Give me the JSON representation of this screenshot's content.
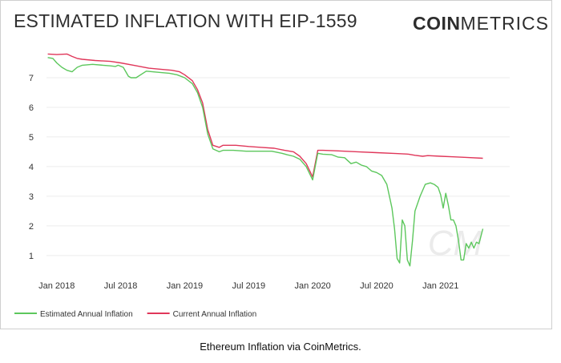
{
  "header": {
    "title": "ESTIMATED INFLATION WITH EIP-1559",
    "logo_bold": "COIN",
    "logo_light": "METRICS",
    "watermark": "CM"
  },
  "caption": "Ethereum Inflation via CoinMetrics.",
  "colors": {
    "estimated": "#5cc75c",
    "current": "#e0375a",
    "grid": "#ececec"
  },
  "chart_data": {
    "type": "line",
    "title": "ESTIMATED INFLATION WITH EIP-1559",
    "xlabel": "",
    "ylabel": "",
    "xlim": [
      2017.92,
      2021.54
    ],
    "ylim": [
      0.4,
      8.0
    ],
    "y_ticks": [
      1,
      2,
      3,
      4,
      5,
      6,
      7
    ],
    "x_ticks": [
      {
        "label": "Jan 2018",
        "value": 2018.0
      },
      {
        "label": "Jul 2018",
        "value": 2018.5
      },
      {
        "label": "Jan 2019",
        "value": 2019.0
      },
      {
        "label": "Jul 2019",
        "value": 2019.5
      },
      {
        "label": "Jan 2020",
        "value": 2020.0
      },
      {
        "label": "Jul 2020",
        "value": 2020.5
      },
      {
        "label": "Jan 2021",
        "value": 2021.0
      }
    ],
    "grid": true,
    "legend_position": "bottom-left",
    "series": [
      {
        "name": "Estimated Annual Inflation",
        "color": "#5cc75c",
        "x": [
          2017.93,
          2017.97,
          2018.0,
          2018.04,
          2018.08,
          2018.12,
          2018.16,
          2018.2,
          2018.28,
          2018.36,
          2018.42,
          2018.46,
          2018.48,
          2018.52,
          2018.56,
          2018.58,
          2018.62,
          2018.7,
          2018.8,
          2018.88,
          2018.94,
          2019.0,
          2019.06,
          2019.1,
          2019.14,
          2019.18,
          2019.22,
          2019.27,
          2019.3,
          2019.38,
          2019.48,
          2019.58,
          2019.68,
          2019.76,
          2019.8,
          2019.85,
          2019.9,
          2019.95,
          2020.0,
          2020.04,
          2020.08,
          2020.15,
          2020.2,
          2020.25,
          2020.3,
          2020.34,
          2020.38,
          2020.42,
          2020.46,
          2020.5,
          2020.54,
          2020.58,
          2020.6,
          2020.62,
          2020.64,
          2020.66,
          2020.68,
          2020.7,
          2020.72,
          2020.74,
          2020.76,
          2020.78,
          2020.8,
          2020.84,
          2020.88,
          2020.92,
          2020.95,
          2020.98,
          2021.0,
          2021.02,
          2021.04,
          2021.06,
          2021.08,
          2021.1,
          2021.12,
          2021.14,
          2021.16,
          2021.18,
          2021.2,
          2021.22,
          2021.24,
          2021.26,
          2021.28,
          2021.3,
          2021.33
        ],
        "values": [
          7.68,
          7.65,
          7.5,
          7.35,
          7.25,
          7.2,
          7.35,
          7.42,
          7.45,
          7.42,
          7.4,
          7.38,
          7.42,
          7.35,
          7.05,
          7.0,
          7.0,
          7.22,
          7.18,
          7.15,
          7.1,
          7.0,
          6.8,
          6.5,
          6.0,
          5.1,
          4.6,
          4.5,
          4.55,
          4.55,
          4.52,
          4.52,
          4.52,
          4.45,
          4.4,
          4.35,
          4.25,
          4.0,
          3.55,
          4.45,
          4.42,
          4.4,
          4.32,
          4.3,
          4.1,
          4.15,
          4.05,
          4.0,
          3.85,
          3.8,
          3.7,
          3.4,
          3.0,
          2.6,
          1.9,
          0.9,
          0.75,
          2.2,
          2.0,
          0.85,
          0.65,
          1.5,
          2.5,
          3.0,
          3.4,
          3.45,
          3.4,
          3.3,
          3.05,
          2.6,
          3.1,
          2.7,
          2.2,
          2.2,
          2.0,
          1.5,
          0.85,
          0.85,
          1.4,
          1.25,
          1.45,
          1.25,
          1.45,
          1.4,
          1.9
        ]
      },
      {
        "name": "Current Annual Inflation",
        "color": "#e0375a",
        "x": [
          2017.93,
          2018.0,
          2018.08,
          2018.12,
          2018.16,
          2018.2,
          2018.3,
          2018.42,
          2018.5,
          2018.6,
          2018.72,
          2018.82,
          2018.9,
          2018.96,
          2019.0,
          2019.06,
          2019.1,
          2019.14,
          2019.18,
          2019.22,
          2019.27,
          2019.3,
          2019.4,
          2019.5,
          2019.6,
          2019.7,
          2019.78,
          2019.85,
          2019.9,
          2019.95,
          2020.0,
          2020.04,
          2020.08,
          2020.2,
          2020.35,
          2020.5,
          2020.65,
          2020.75,
          2020.8,
          2020.86,
          2020.9,
          2021.0,
          2021.1,
          2021.2,
          2021.33
        ],
        "values": [
          7.8,
          7.78,
          7.8,
          7.72,
          7.65,
          7.62,
          7.58,
          7.55,
          7.5,
          7.42,
          7.32,
          7.28,
          7.25,
          7.2,
          7.1,
          6.9,
          6.6,
          6.15,
          5.25,
          4.72,
          4.65,
          4.72,
          4.72,
          4.68,
          4.65,
          4.62,
          4.55,
          4.5,
          4.35,
          4.1,
          3.65,
          4.55,
          4.55,
          4.53,
          4.5,
          4.47,
          4.44,
          4.42,
          4.38,
          4.35,
          4.37,
          4.35,
          4.33,
          4.31,
          4.28
        ]
      }
    ]
  }
}
